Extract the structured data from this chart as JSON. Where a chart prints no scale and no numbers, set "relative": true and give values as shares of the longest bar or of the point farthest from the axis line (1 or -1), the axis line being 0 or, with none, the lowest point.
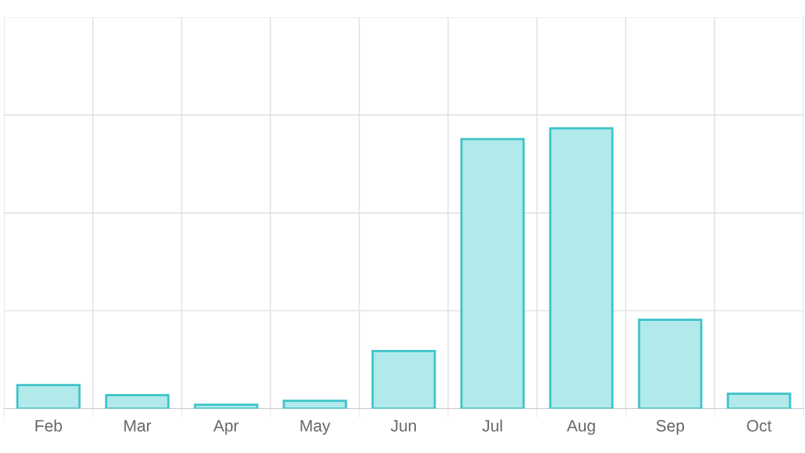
{
  "chart_data": {
    "type": "bar",
    "relative": true,
    "categories": [
      "Feb",
      "Mar",
      "Apr",
      "May",
      "Jun",
      "Jul",
      "Aug",
      "Sep",
      "Oct"
    ],
    "values": [
      0.084,
      0.048,
      0.014,
      0.028,
      0.205,
      0.961,
      1,
      0.317,
      0.053
    ],
    "color": "#b2e9ea",
    "grid": true,
    "legend": false
  }
}
